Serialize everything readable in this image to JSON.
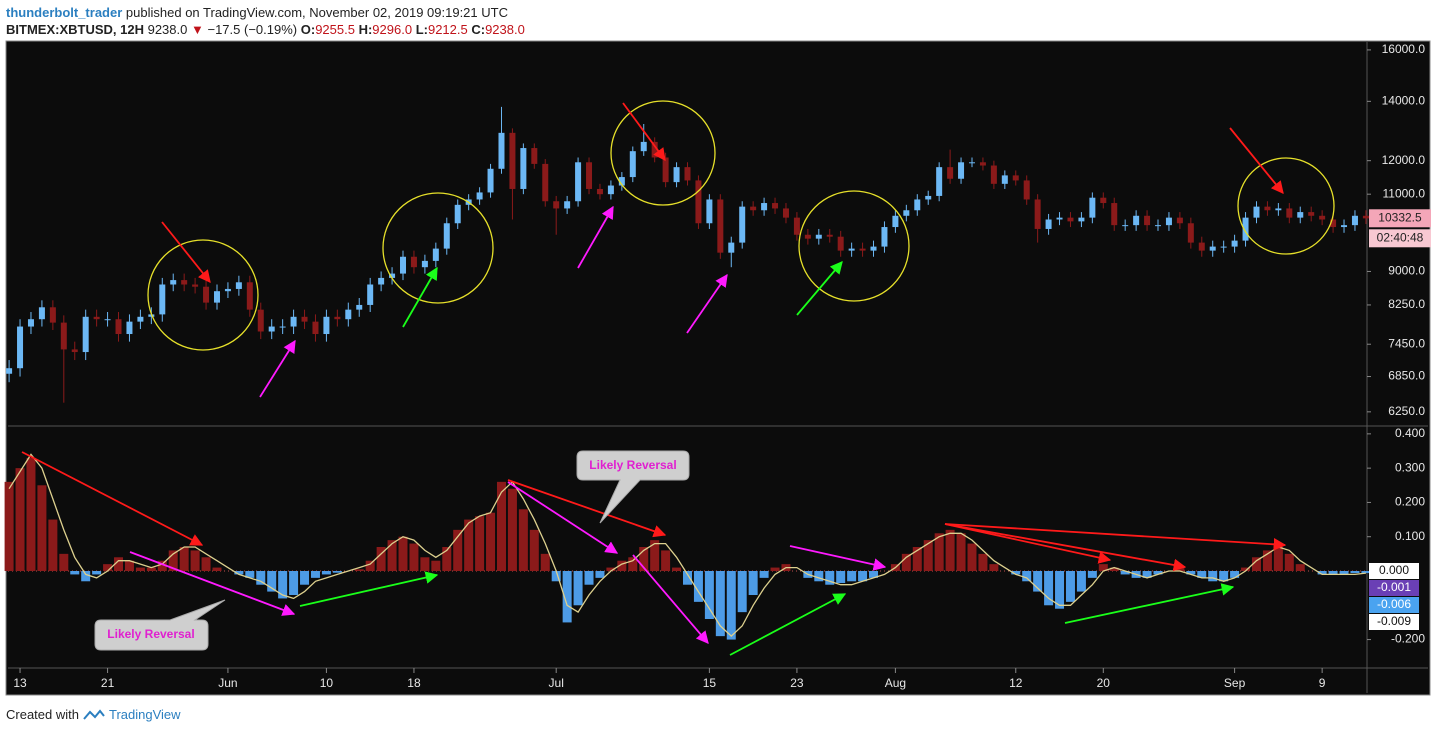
{
  "header": {
    "author": "thunderbolt_trader",
    "published": "published on TradingView.com, November 02, 2019 09:19:21 UTC",
    "symbol": "BITMEX:XBTUSD, 12H",
    "last": "9238.0",
    "change": "−17.5 (−0.19%)",
    "open_label": "O:",
    "open": "9255.5",
    "high_label": "H:",
    "high": "9296.0",
    "low_label": "L:",
    "low": "9212.5",
    "close_label": "C:",
    "close": "9238.0"
  },
  "footer": {
    "created": "Created with",
    "brand": "TradingView"
  },
  "chart_data": [
    {
      "type": "candlestick",
      "log_scale": true,
      "ylim": [
        6040,
        16290
      ],
      "xlim": [
        -0.1,
        124.1
      ],
      "yticks": [
        {
          "value": 16000,
          "label": "16000.0"
        },
        {
          "value": 14000,
          "label": "14000.0"
        },
        {
          "value": 12000,
          "label": "12000.0"
        },
        {
          "value": 11000,
          "label": "11000.0"
        },
        {
          "value": 9000,
          "label": "9000.0"
        },
        {
          "value": 8250,
          "label": "8250.0"
        },
        {
          "value": 7450,
          "label": "7450.0"
        },
        {
          "value": 6850,
          "label": "6850.0"
        },
        {
          "value": 6250,
          "label": "6250.0"
        }
      ],
      "xticks": [
        {
          "value": 1,
          "label": "13"
        },
        {
          "value": 9,
          "label": "21"
        },
        {
          "value": 20,
          "label": "Jun"
        },
        {
          "value": 29,
          "label": "10"
        },
        {
          "value": 37,
          "label": "18"
        },
        {
          "value": 50,
          "label": "Jul"
        },
        {
          "value": 64,
          "label": "15"
        },
        {
          "value": 72,
          "label": "23"
        },
        {
          "value": 81,
          "label": "Aug"
        },
        {
          "value": 92,
          "label": "12"
        },
        {
          "value": 100,
          "label": "20"
        },
        {
          "value": 112,
          "label": "Sep"
        },
        {
          "value": 120,
          "label": "9"
        }
      ],
      "up_color": "#6cb8f5",
      "down_color": "#8b1a1a",
      "price_tag": 10332.5,
      "countdown": "02:40:48",
      "open": [
        6900,
        7000,
        7800,
        7950,
        8200,
        7880,
        7350,
        7300,
        8000,
        7950,
        7950,
        7650,
        7900,
        8000,
        8050,
        8700,
        8800,
        8700,
        8650,
        8300,
        8550,
        8600,
        8750,
        8150,
        7700,
        7800,
        7800,
        8000,
        7900,
        7650,
        8000,
        7950,
        8150,
        8250,
        8700,
        8850,
        8950,
        9350,
        9100,
        9250,
        9550,
        10200,
        10700,
        10850,
        11050,
        11750,
        12900,
        11150,
        12400,
        11900,
        10800,
        10600,
        10800,
        11950,
        11150,
        11000,
        11250,
        11500,
        12300,
        12600,
        12100,
        11350,
        11800,
        11400,
        10200,
        10850,
        9450,
        9700,
        10650,
        10550,
        10750,
        10600,
        10350,
        9900,
        9800,
        9900,
        9850,
        9500,
        9550,
        9500,
        9600,
        10100,
        10400,
        10550,
        10850,
        10950,
        11800,
        11450,
        11950,
        11950,
        11850,
        11300,
        11550,
        11400,
        10850,
        10050,
        10300,
        10350,
        10250,
        10350,
        10900,
        10750,
        10150,
        10150,
        10400,
        10150,
        10150,
        10350,
        10200,
        9700,
        9500,
        9600,
        9600,
        9750,
        10350,
        10650,
        10550,
        10600,
        10350,
        10500,
        10400,
        10300,
        10100,
        10150,
        10400
      ],
      "high": [
        7150,
        7950,
        8100,
        8350,
        8350,
        8030,
        7500,
        8150,
        8150,
        8100,
        8100,
        8050,
        8150,
        8200,
        8850,
        8950,
        8950,
        8850,
        8800,
        8700,
        8750,
        8900,
        8900,
        8300,
        7950,
        7950,
        8150,
        8150,
        8050,
        8150,
        8150,
        8300,
        8400,
        8850,
        9000,
        9100,
        9500,
        9500,
        9400,
        9700,
        10350,
        10850,
        11000,
        11200,
        11900,
        13800,
        13050,
        12550,
        12550,
        12050,
        10950,
        10950,
        12100,
        12100,
        11300,
        11400,
        11650,
        12450,
        13200,
        12750,
        12250,
        11950,
        11950,
        11550,
        11000,
        11000,
        9850,
        10800,
        10800,
        10900,
        10900,
        10750,
        10500,
        10050,
        10050,
        10050,
        10000,
        9700,
        9700,
        9750,
        10250,
        10550,
        10700,
        11000,
        11100,
        11950,
        12350,
        12100,
        12100,
        12100,
        12000,
        11700,
        11700,
        11550,
        11000,
        10450,
        10500,
        10500,
        10500,
        11050,
        11050,
        10900,
        10300,
        10550,
        10550,
        10300,
        10500,
        10500,
        10350,
        9850,
        9750,
        9750,
        9900,
        10500,
        10800,
        10800,
        10750,
        10750,
        10650,
        10650,
        10550,
        10450,
        10300,
        10550,
        10550
      ],
      "low": [
        6750,
        6850,
        7650,
        7800,
        7730,
        6400,
        7150,
        7150,
        7800,
        7800,
        7500,
        7500,
        7750,
        7850,
        7900,
        8550,
        8550,
        8500,
        8150,
        8150,
        8400,
        8450,
        8000,
        7550,
        7550,
        7650,
        7650,
        7750,
        7500,
        7500,
        7800,
        7800,
        8000,
        8100,
        8550,
        8700,
        8800,
        8950,
        8950,
        9100,
        9400,
        10050,
        10550,
        10700,
        10900,
        11600,
        10300,
        11000,
        11750,
        10650,
        9900,
        10450,
        10650,
        11000,
        10850,
        10850,
        11100,
        11350,
        12150,
        11950,
        11200,
        11200,
        11250,
        10050,
        10050,
        9300,
        9100,
        9550,
        10400,
        10400,
        10450,
        10200,
        9750,
        9650,
        9650,
        9700,
        9350,
        9350,
        9350,
        9350,
        9450,
        9950,
        10250,
        10400,
        10700,
        10800,
        11300,
        11300,
        11800,
        11700,
        11150,
        11150,
        11250,
        10700,
        9700,
        9900,
        10150,
        10100,
        10100,
        10200,
        10600,
        10000,
        10000,
        10000,
        10000,
        10000,
        10000,
        10050,
        9550,
        9350,
        9350,
        9450,
        9450,
        9600,
        10200,
        10400,
        10400,
        10200,
        10200,
        10250,
        10150,
        9950,
        9950,
        10000,
        10180
      ],
      "close": [
        7000,
        7800,
        7950,
        8200,
        7880,
        7350,
        7300,
        8000,
        7950,
        7950,
        7650,
        7900,
        8000,
        8050,
        8700,
        8800,
        8700,
        8650,
        8300,
        8550,
        8600,
        8750,
        8150,
        7700,
        7800,
        7800,
        8000,
        7900,
        7650,
        8000,
        7950,
        8150,
        8250,
        8700,
        8850,
        8950,
        9350,
        9100,
        9250,
        9550,
        10200,
        10700,
        10850,
        11050,
        11750,
        12900,
        11150,
        12400,
        11900,
        10800,
        10600,
        10800,
        11950,
        11150,
        11000,
        11250,
        11500,
        12300,
        12600,
        12100,
        11350,
        11800,
        11400,
        10200,
        10850,
        9450,
        9700,
        10650,
        10550,
        10750,
        10600,
        10350,
        9900,
        9800,
        9900,
        9850,
        9500,
        9550,
        9500,
        9600,
        10100,
        10400,
        10550,
        10850,
        10950,
        11800,
        11450,
        11950,
        11950,
        11850,
        11300,
        11550,
        11400,
        10850,
        10050,
        10300,
        10350,
        10250,
        10350,
        10900,
        10750,
        10150,
        10150,
        10400,
        10150,
        10150,
        10350,
        10200,
        9700,
        9500,
        9600,
        9600,
        9750,
        10350,
        10650,
        10550,
        10600,
        10350,
        10500,
        10400,
        10300,
        10100,
        10150,
        10400,
        10330
      ]
    },
    {
      "type": "bar",
      "ylim": [
        -0.28,
        0.42
      ],
      "yticks": [
        {
          "value": 0.4,
          "label": "0.400"
        },
        {
          "value": 0.3,
          "label": "0.300"
        },
        {
          "value": 0.2,
          "label": "0.200"
        },
        {
          "value": 0.1,
          "label": "0.100"
        },
        {
          "value": -0.2,
          "label": "-0.200"
        }
      ],
      "pos_color": "#8b1a1a",
      "neg_color": "#4d9be6",
      "line_color": "#ddd08e",
      "tags": [
        {
          "value": 0,
          "label": "0.000",
          "color": "#ffffff"
        },
        {
          "value": -0.001,
          "label": "-0.001",
          "color": "#6a3fb5"
        },
        {
          "value": -0.006,
          "label": "-0.006",
          "color": "#4aa3f0"
        },
        {
          "value": -0.009,
          "label": "-0.009",
          "color": "#ffffff"
        }
      ],
      "annotations": [
        "Likely Reversal",
        "Likely Reversal"
      ],
      "values": [
        0.26,
        0.3,
        0.33,
        0.25,
        0.15,
        0.05,
        -0.01,
        -0.03,
        -0.01,
        0.02,
        0.04,
        0.03,
        0.01,
        0.01,
        0.03,
        0.06,
        0.07,
        0.06,
        0.04,
        0.01,
        0,
        -0.01,
        -0.02,
        -0.04,
        -0.06,
        -0.08,
        -0.07,
        -0.04,
        -0.02,
        -0.01,
        -0.005,
        0,
        0.005,
        0.03,
        0.07,
        0.09,
        0.1,
        0.08,
        0.04,
        0.03,
        0.07,
        0.12,
        0.15,
        0.16,
        0.17,
        0.26,
        0.24,
        0.18,
        0.12,
        0.05,
        -0.03,
        -0.15,
        -0.1,
        -0.04,
        -0.02,
        0.01,
        0.03,
        0.04,
        0.07,
        0.09,
        0.06,
        0.01,
        -0.04,
        -0.09,
        -0.14,
        -0.19,
        -0.2,
        -0.12,
        -0.07,
        -0.02,
        0.01,
        0.02,
        0,
        -0.02,
        -0.03,
        -0.04,
        -0.035,
        -0.03,
        -0.03,
        -0.02,
        0,
        0.02,
        0.05,
        0.07,
        0.09,
        0.11,
        0.12,
        0.11,
        0.08,
        0.05,
        0.02,
        0,
        -0.01,
        -0.03,
        -0.06,
        -0.1,
        -0.11,
        -0.09,
        -0.06,
        -0.02,
        0.02,
        0.01,
        -0.01,
        -0.02,
        -0.02,
        -0.01,
        0,
        0.01,
        -0.01,
        -0.02,
        -0.03,
        -0.03,
        -0.02,
        0.01,
        0.04,
        0.06,
        0.07,
        0.05,
        0.02,
        0,
        -0.01,
        -0.01,
        -0.01,
        -0.006,
        -0.006
      ],
      "line_values": [
        0.24,
        0.29,
        0.34,
        0.3,
        0.21,
        0.12,
        0.04,
        -0.01,
        -0.02,
        0,
        0.03,
        0.03,
        0.02,
        0.01,
        0.02,
        0.05,
        0.07,
        0.07,
        0.05,
        0.03,
        0.01,
        -0.01,
        -0.02,
        -0.03,
        -0.05,
        -0.07,
        -0.08,
        -0.06,
        -0.03,
        -0.02,
        -0.01,
        0,
        0.01,
        0.02,
        0.05,
        0.08,
        0.1,
        0.09,
        0.06,
        0.04,
        0.06,
        0.1,
        0.14,
        0.16,
        0.17,
        0.23,
        0.26,
        0.21,
        0.15,
        0.08,
        0,
        -0.1,
        -0.12,
        -0.07,
        -0.03,
        0,
        0.02,
        0.03,
        0.06,
        0.08,
        0.08,
        0.04,
        -0.01,
        -0.06,
        -0.11,
        -0.16,
        -0.19,
        -0.16,
        -0.1,
        -0.05,
        -0.01,
        0.01,
        0.01,
        -0.01,
        -0.02,
        -0.03,
        -0.04,
        -0.04,
        -0.03,
        -0.02,
        -0.01,
        0.01,
        0.04,
        0.06,
        0.08,
        0.1,
        0.11,
        0.11,
        0.09,
        0.06,
        0.03,
        0.01,
        -0.01,
        -0.02,
        -0.05,
        -0.08,
        -0.1,
        -0.1,
        -0.07,
        -0.04,
        0,
        0.01,
        0,
        -0.01,
        -0.02,
        -0.01,
        0,
        0,
        -0.01,
        -0.02,
        -0.02,
        -0.03,
        -0.02,
        0,
        0.03,
        0.05,
        0.07,
        0.06,
        0.03,
        0.01,
        -0.01,
        -0.01,
        -0.01,
        -0.01,
        -0.006
      ]
    }
  ]
}
